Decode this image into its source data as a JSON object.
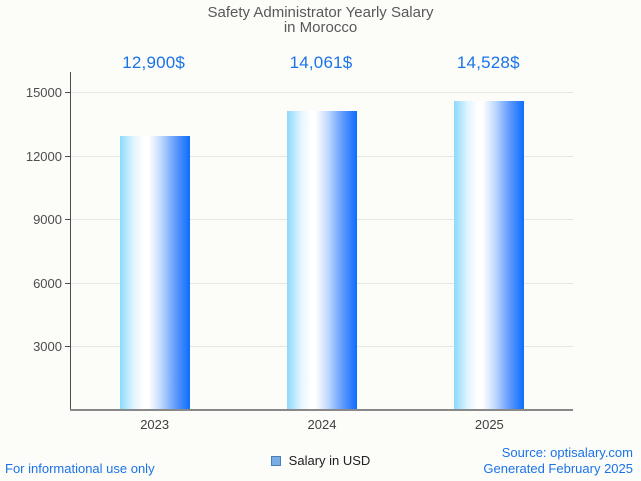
{
  "title": {
    "line1": "Safety Administrator Yearly Salary",
    "line2": "in Morocco"
  },
  "chart_data": {
    "type": "bar",
    "title": "Safety Administrator Yearly Salary in Morocco",
    "categories": [
      "2023",
      "2024",
      "2025"
    ],
    "values": [
      12900,
      14061,
      14528
    ],
    "value_labels": [
      "12,900$",
      "14,061$",
      "14,528$"
    ],
    "series_name": "Salary in USD",
    "xlabel": "",
    "ylabel": "",
    "ylim": [
      0,
      15943
    ],
    "yticks": [
      3000,
      6000,
      9000,
      12000,
      15000
    ],
    "grid": true,
    "legend_position": "bottom"
  },
  "legend": {
    "label": "Salary in USD",
    "swatch_color": "#78aee3",
    "swatch_border": "#4a7cba"
  },
  "colors": {
    "annotation_blue": "#1a73e8",
    "bar_gradient_left": "#8cdafc",
    "bar_gradient_mid": "#ffffff",
    "bar_gradient_right": "#0d6dfe",
    "title_gray": "#595959",
    "gridline": "#e6e6e6",
    "background": "#fcfcf9"
  },
  "footer": {
    "left": "For informational use only",
    "source": "Source: optisalary.com",
    "generated": "Generated February 2025"
  }
}
